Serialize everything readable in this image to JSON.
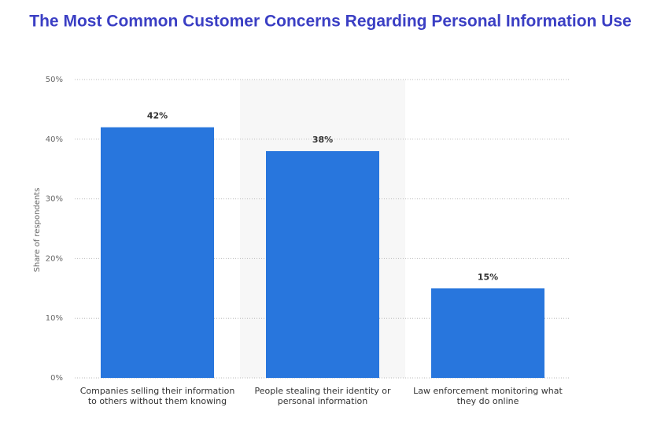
{
  "chart_data": {
    "type": "bar",
    "title": "The Most Common Customer Concerns Regarding Personal Information Use",
    "y_label": "Share of respondents",
    "categories": [
      "Companies selling their information to others without them knowing",
      "People stealing their identity or personal information",
      "Law enforcement monitoring what they do online"
    ],
    "values": [
      42,
      38,
      15
    ],
    "value_labels": [
      "42%",
      "38%",
      "15%"
    ],
    "color": "#2876dd",
    "ylim": [
      0,
      50
    ],
    "yticks": [
      {
        "value": 0,
        "label": "0%"
      },
      {
        "value": 10,
        "label": "10%"
      },
      {
        "value": 20,
        "label": "20%"
      },
      {
        "value": 30,
        "label": "30%"
      },
      {
        "value": 40,
        "label": "40%"
      },
      {
        "value": 50,
        "label": "50%"
      }
    ],
    "grid": true
  }
}
